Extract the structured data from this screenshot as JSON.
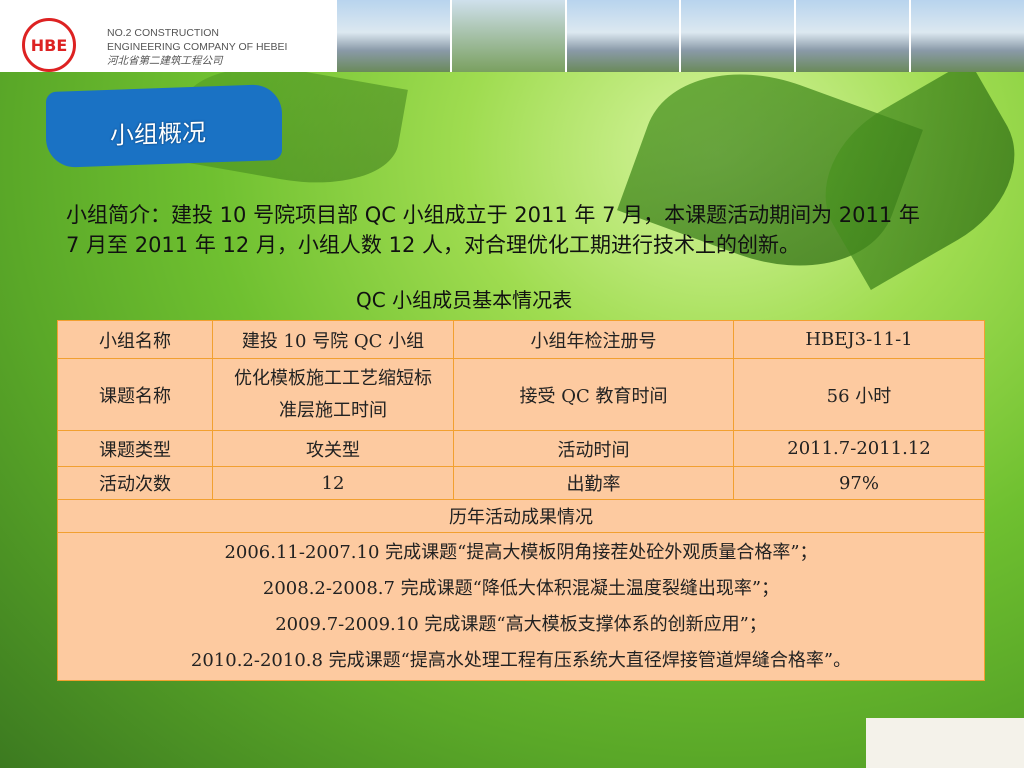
{
  "header": {
    "logo_text": "HBE",
    "company_en_1": "NO.2 CONSTRUCTION",
    "company_en_2": "ENGINEERING COMPANY OF HEBEI",
    "company_cn": "河北省第二建筑工程公司"
  },
  "banner": {
    "title": "小组概况"
  },
  "intro": "小组简介：建投 10 号院项目部 QC 小组成立于 2011 年 7 月，本课题活动期间为 2011 年 7 月至 2011 年 12 月，小组人数 12 人，对合理优化工期进行技术上的创新。",
  "table": {
    "caption": "QC 小组成员基本情况表",
    "rows": [
      [
        "小组名称",
        "建投 10 号院 QC 小组",
        "小组年检注册号",
        "HBEJ3-11-1"
      ],
      [
        "课题名称",
        "优化模板施工工艺缩短标准层施工时间",
        "接受 QC 教育时间",
        "56 小时"
      ],
      [
        "课题类型",
        "攻关型",
        "活动时间",
        "2011.7-2011.12"
      ],
      [
        "活动次数",
        "12",
        "出勤率",
        "97%"
      ]
    ],
    "history_header": "历年活动成果情况",
    "history": [
      "2006.11-2007.10 完成课题“提高大模板阴角接茬处砼外观质量合格率”；",
      "2008.2-2008.7 完成课题“降低大体积混凝土温度裂缝出现率”；",
      "2009.7-2009.10 完成课题“高大模板支撑体系的创新应用”；",
      "2010.2-2010.8 完成课题“提高水处理工程有压系统大直径焊接管道焊缝合格率”。"
    ]
  }
}
